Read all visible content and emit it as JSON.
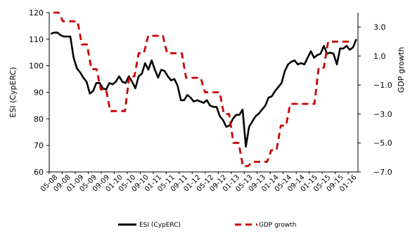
{
  "chart_data": {
    "type": "line",
    "ylabel_left": "ESI (CypERC)",
    "ylabel_right": "GDP growth",
    "ylim_left": [
      60,
      120
    ],
    "ylim_right": [
      -7,
      4
    ],
    "yticks_left": [
      "60",
      "70",
      "80",
      "90",
      "100",
      "110",
      "120"
    ],
    "yticks_right": [
      "-7.0",
      "-5.0",
      "-3.0",
      "-1.0",
      "1.0",
      "3.0"
    ],
    "x_tick_labels": [
      "05-08",
      "09-08",
      "01-09",
      "05-09",
      "09-09",
      "01-10",
      "05-10",
      "09-10",
      "01-11",
      "05-11",
      "09-11",
      "01-12",
      "05-12",
      "09-12",
      "01-13",
      "05-13",
      "09-13",
      "01-14",
      "05-14",
      "09-14",
      "01-15",
      "05-15",
      "09-15",
      "01-16"
    ],
    "legend": {
      "position": "bottom"
    },
    "series": [
      {
        "name": "ESI (CypERC)",
        "axis": "left",
        "color": "#000000",
        "style": "solid",
        "values": [
          112,
          112.5,
          112.5,
          111.5,
          111,
          111,
          111,
          103,
          99,
          97.5,
          95.5,
          94,
          89.5,
          90.5,
          93.5,
          93.5,
          91.5,
          91,
          93.5,
          93,
          94,
          96,
          94,
          93.5,
          96,
          94,
          91.5,
          96,
          97,
          101,
          98.5,
          102,
          98.5,
          95.5,
          98.5,
          98,
          96,
          94.5,
          95,
          92.5,
          87,
          87,
          89,
          88,
          86.5,
          87,
          86.5,
          86,
          87,
          85,
          84.5,
          84.5,
          81,
          79.5,
          77,
          77.5,
          80,
          81.5,
          81.5,
          83.5,
          69.5,
          77,
          79,
          81,
          82,
          83.5,
          85,
          88,
          88.5,
          90.5,
          92,
          93.5,
          98,
          100.5,
          101.5,
          102,
          100.5,
          101,
          100.5,
          103,
          105.5,
          103,
          104,
          104.5,
          107.5,
          104.5,
          105,
          104.5,
          100.5,
          106.5,
          106.5,
          107.5,
          106,
          107,
          110
        ]
      },
      {
        "name": "GDP growth",
        "axis": "right",
        "color": "#cc0000",
        "style": "dashed",
        "quarterly": true,
        "values": [
          4.0,
          3.4,
          3.4,
          1.8,
          0.1,
          -1.3,
          -2.8,
          -2.8,
          -0.4,
          1.2,
          2.4,
          2.4,
          1.2,
          1.2,
          -0.5,
          -0.5,
          -1.5,
          -1.5,
          -3.0,
          -5.0,
          -6.6,
          -6.3,
          -6.3,
          -5.5,
          -3.8,
          -2.3,
          -2.3,
          -2.3,
          0.2,
          2.0,
          2.0,
          2.0
        ]
      }
    ]
  }
}
